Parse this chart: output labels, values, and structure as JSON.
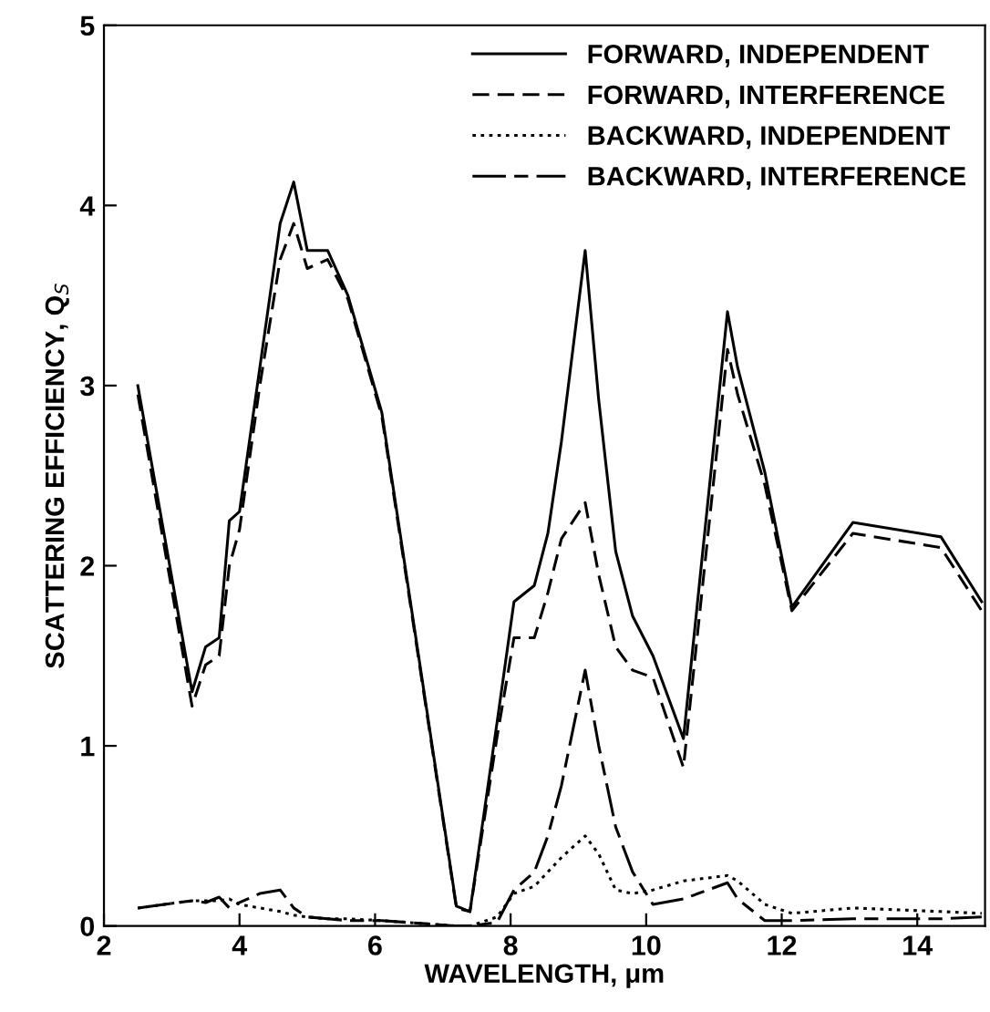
{
  "chart_data": {
    "type": "line",
    "xlabel": "WAVELENGTH, μm",
    "ylabel": "SCATTERING EFFICIENCY, Q$_{S}$",
    "x": [
      2.5,
      3.3,
      3.5,
      3.7,
      3.85,
      4.0,
      4.3,
      4.6,
      4.8,
      5.0,
      5.3,
      5.6,
      6.1,
      7.2,
      7.4,
      7.8,
      8.05,
      8.35,
      8.55,
      8.75,
      9.1,
      9.3,
      9.55,
      9.8,
      10.1,
      10.55,
      11.2,
      11.35,
      11.75,
      12.15,
      13.05,
      14.35,
      14.95
    ],
    "series": [
      {
        "name": "FORWARD, INDEPENDENT",
        "color": "#000000",
        "line_style": "solid",
        "values": [
          3.0,
          1.3,
          1.55,
          1.6,
          2.25,
          2.3,
          3.1,
          3.9,
          4.13,
          3.75,
          3.75,
          3.5,
          2.85,
          0.11,
          0.08,
          1.13,
          1.8,
          1.89,
          2.18,
          2.69,
          3.75,
          2.92,
          2.08,
          1.72,
          1.5,
          1.04,
          3.41,
          3.1,
          2.52,
          1.77,
          2.24,
          2.16,
          1.8
        ]
      },
      {
        "name": "FORWARD, INTERFERENCE",
        "color": "#000000",
        "line_style": "dashed",
        "values": [
          2.95,
          1.22,
          1.45,
          1.5,
          2.0,
          2.2,
          3.0,
          3.7,
          3.9,
          3.65,
          3.7,
          3.48,
          2.83,
          0.1,
          0.08,
          1.05,
          1.6,
          1.6,
          1.85,
          2.15,
          2.35,
          1.95,
          1.55,
          1.42,
          1.38,
          0.88,
          3.2,
          2.95,
          2.45,
          1.75,
          2.18,
          2.1,
          1.75
        ]
      },
      {
        "name": "BACKWARD, INDEPENDENT",
        "color": "#000000",
        "line_style": "dotted",
        "values": [
          0.1,
          0.14,
          0.14,
          0.14,
          0.15,
          0.12,
          0.1,
          0.08,
          0.06,
          0.05,
          0.04,
          0.04,
          0.03,
          0.0,
          0.0,
          0.05,
          0.18,
          0.22,
          0.3,
          0.38,
          0.5,
          0.4,
          0.2,
          0.18,
          0.2,
          0.25,
          0.28,
          0.25,
          0.12,
          0.07,
          0.1,
          0.08,
          0.07
        ]
      },
      {
        "name": "BACKWARD, INTERFERENCE",
        "color": "#000000",
        "line_style": "dashdot",
        "values": [
          0.1,
          0.14,
          0.13,
          0.16,
          0.1,
          0.13,
          0.18,
          0.2,
          0.1,
          0.05,
          0.04,
          0.03,
          0.03,
          0.0,
          0.0,
          0.02,
          0.2,
          0.3,
          0.5,
          0.78,
          1.42,
          1.0,
          0.55,
          0.3,
          0.12,
          0.15,
          0.24,
          0.15,
          0.03,
          0.03,
          0.04,
          0.04,
          0.05
        ]
      }
    ],
    "xlim": [
      2,
      15
    ],
    "ylim": [
      0,
      5
    ],
    "xticks": [
      2,
      4,
      6,
      8,
      10,
      12,
      14
    ],
    "yticks": [
      0,
      1,
      2,
      3,
      4,
      5
    ],
    "grid": false,
    "legend": "top right",
    "marker": "none"
  }
}
